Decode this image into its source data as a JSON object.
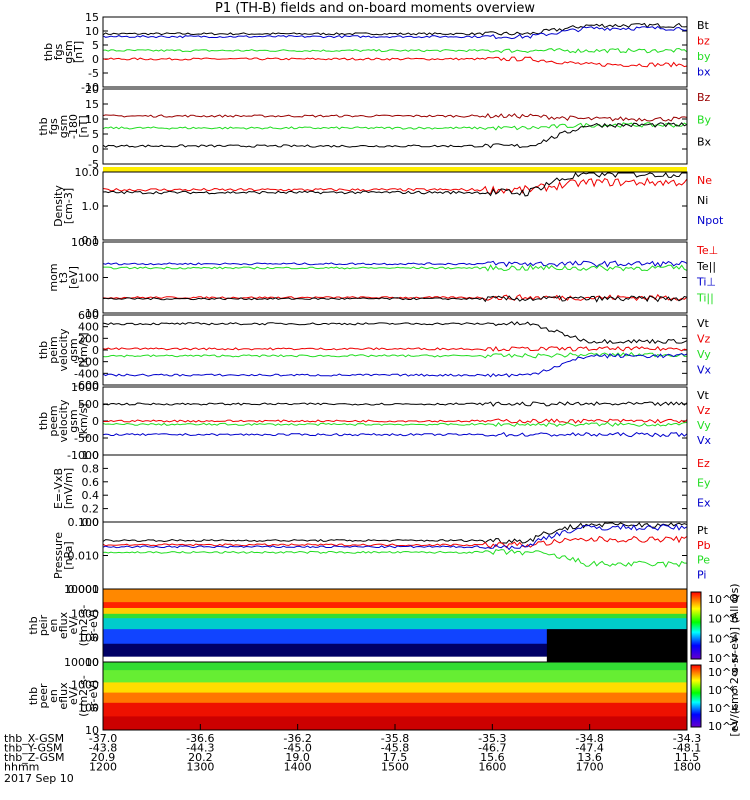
{
  "title": "P1 (TH-B) fields and on-board moments overview",
  "colors": {
    "black": "#000000",
    "red": "#ee0000",
    "green": "#22dd22",
    "blue": "#0000cc",
    "darkred": "#990000",
    "yellow": "#ffee00"
  },
  "chart_data": [
    {
      "type": "line",
      "ylabel": [
        "thb",
        "fgs",
        "gsm",
        "[nT]"
      ],
      "ylim": [
        -10,
        15
      ],
      "yticks": [
        "15",
        "10",
        "5",
        "0",
        "-5",
        "-10"
      ],
      "series": [
        {
          "name": "Bt",
          "color": "black",
          "base": 9,
          "end": 12
        },
        {
          "name": "bz",
          "color": "red",
          "base": 0,
          "end": -2
        },
        {
          "name": "by",
          "color": "green",
          "base": 3,
          "end": 3
        },
        {
          "name": "bx",
          "color": "blue",
          "base": 8,
          "end": 11
        }
      ]
    },
    {
      "type": "line",
      "ylabel": [
        "thb",
        "fgs",
        "gsm",
        "-180",
        "[nT]"
      ],
      "ylim": [
        -5,
        20
      ],
      "yticks": [
        "20",
        "15",
        "10",
        "5",
        "0",
        "-5"
      ],
      "series": [
        {
          "name": "Bz",
          "color": "darkred",
          "base": 11,
          "end": 10
        },
        {
          "name": "By",
          "color": "green",
          "base": 7,
          "end": 8
        },
        {
          "name": "Bx",
          "color": "black",
          "base": 1,
          "end": 8
        }
      ]
    },
    {
      "type": "bar",
      "ylabel": [],
      "note": "yellow flag bar"
    },
    {
      "type": "line",
      "ylabel": [
        "Density",
        "[cm-3]"
      ],
      "ylim": [
        0.1,
        10
      ],
      "log": true,
      "yticks": [
        "10.0",
        "1.0",
        "0.1"
      ],
      "series": [
        {
          "name": "Ne",
          "color": "red",
          "base": 3,
          "end": 5
        },
        {
          "name": "Ni",
          "color": "black",
          "base": 2.5,
          "end": 9
        },
        {
          "name": "Npot",
          "color": "blue",
          "base": null
        }
      ]
    },
    {
      "type": "line",
      "ylabel": [
        "mom",
        "t3",
        "[eV]"
      ],
      "ylim": [
        10,
        10000
      ],
      "log": true,
      "yticks": [
        "1000",
        "100",
        "10"
      ],
      "series": [
        {
          "name": "Te⊥",
          "color": "red",
          "base": 45,
          "end": 45
        },
        {
          "name": "Te||",
          "color": "black",
          "base": 40,
          "end": 40
        },
        {
          "name": "Ti⊥",
          "color": "blue",
          "base": 1200,
          "end": 1200
        },
        {
          "name": "Ti||",
          "color": "green",
          "base": 800,
          "end": 800
        }
      ]
    },
    {
      "type": "line",
      "ylabel": [
        "thb",
        "peim",
        "velocity",
        "gsm",
        "[km/s]"
      ],
      "ylim": [
        -600,
        600
      ],
      "yticks": [
        "600",
        "400",
        "200",
        "0",
        "-200",
        "-400",
        "-600"
      ],
      "series": [
        {
          "name": "Vt",
          "color": "black",
          "base": 450,
          "end": 150
        },
        {
          "name": "Vz",
          "color": "red",
          "base": 20,
          "end": 20
        },
        {
          "name": "Vy",
          "color": "green",
          "base": -100,
          "end": -80
        },
        {
          "name": "Vx",
          "color": "blue",
          "base": -430,
          "end": -100
        }
      ]
    },
    {
      "type": "line",
      "ylabel": [
        "thb",
        "peem",
        "velocity",
        "gsm",
        "[km/s]"
      ],
      "ylim": [
        -1000,
        1000
      ],
      "yticks": [
        "1000",
        "500",
        "0",
        "-500",
        "-1000"
      ],
      "series": [
        {
          "name": "Vt",
          "color": "black",
          "base": 500,
          "end": 500
        },
        {
          "name": "Vz",
          "color": "red",
          "base": 0,
          "end": 0
        },
        {
          "name": "Vy",
          "color": "green",
          "base": -100,
          "end": -100
        },
        {
          "name": "Vx",
          "color": "blue",
          "base": -400,
          "end": -400
        }
      ]
    },
    {
      "type": "line",
      "ylabel": [
        "E=-VxB",
        "[mV/m]"
      ],
      "ylim": [
        0,
        1
      ],
      "yticks": [
        "1.0",
        "0.8",
        "0.6",
        "0.4",
        "0.2",
        "0.0"
      ],
      "series": [
        {
          "name": "Ez",
          "color": "red"
        },
        {
          "name": "Ey",
          "color": "green"
        },
        {
          "name": "Ex",
          "color": "blue"
        }
      ]
    },
    {
      "type": "line",
      "ylabel": [
        "Pressure",
        "[nPa]"
      ],
      "ylim": [
        0.001,
        0.5
      ],
      "log": true,
      "yticks": [
        "0.100",
        "0.010",
        "0.001"
      ],
      "series": [
        {
          "name": "Pt",
          "color": "black",
          "base": 0.09,
          "end": 0.4
        },
        {
          "name": "Pb",
          "color": "red",
          "base": 0.06,
          "end": 0.1
        },
        {
          "name": "Pe",
          "color": "green",
          "base": 0.03,
          "end": 0.01
        },
        {
          "name": "Pi",
          "color": "blue",
          "base": 0.05,
          "end": 0.3
        }
      ]
    },
    {
      "type": "heatmap",
      "ylabel": [
        "thb",
        "peir",
        "en",
        "eflux",
        "eV/",
        "(cm2-s-",
        "sr-eV)"
      ],
      "yticks": [
        "10000",
        "1000",
        "100",
        "10"
      ]
    },
    {
      "type": "heatmap",
      "ylabel": [
        "thb",
        "peer",
        "en",
        "eflux",
        "eV/",
        "(cm2-s-",
        "sr-eV)"
      ],
      "yticks": [
        "10000",
        "1000",
        "100",
        "10"
      ]
    }
  ],
  "colorbar": {
    "label": "[eV/(cm^2-s-sr-eV)] (All Qs)",
    "ticks_top": [
      "10^8",
      "10^6",
      "10^4",
      "10^2"
    ],
    "ticks_bottom": [
      "10^8",
      "10^6",
      "10^4",
      "10^2"
    ]
  },
  "x_axis": {
    "rows": [
      {
        "label": "thb_X-GSM",
        "values": [
          "-37.0",
          "-36.6",
          "-36.2",
          "-35.8",
          "-35.3",
          "-34.8",
          "-34.3"
        ]
      },
      {
        "label": "thb_Y-GSM",
        "values": [
          "-43.8",
          "-44.3",
          "-45.0",
          "-45.8",
          "-46.7",
          "-47.4",
          "-48.1"
        ]
      },
      {
        "label": "thb_Z-GSM",
        "values": [
          "20.9",
          "20.2",
          "19.0",
          "17.5",
          "15.6",
          "13.6",
          "11.5"
        ]
      },
      {
        "label": "hhmm",
        "values": [
          "1200",
          "1300",
          "1400",
          "1500",
          "1600",
          "1700",
          "1800"
        ]
      }
    ],
    "date": "2017 Sep 10"
  }
}
